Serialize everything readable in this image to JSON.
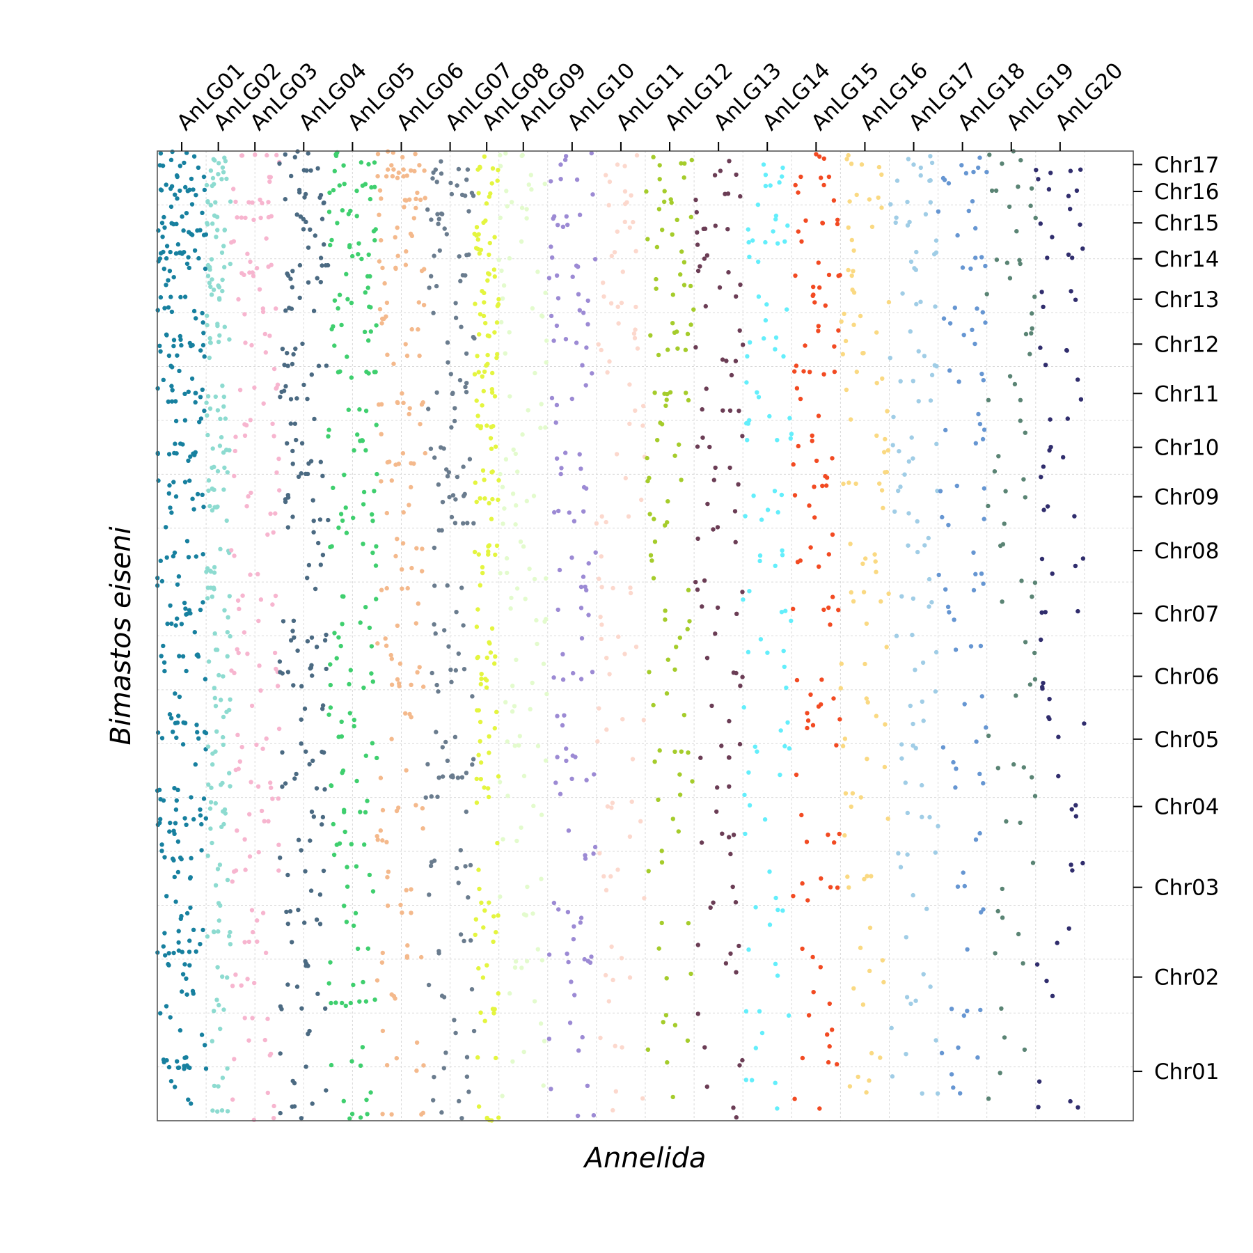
{
  "chart_data": {
    "type": "scatter",
    "xlabel": "Annelida",
    "ylabel": "Bimastos eiseni",
    "x_axis_position": "top",
    "y_axis_position": "right",
    "grid": true,
    "x_categories": [
      "AnLG01",
      "AnLG02",
      "AnLG03",
      "AnLG04",
      "AnLG05",
      "AnLG06",
      "AnLG07",
      "AnLG08",
      "AnLG09",
      "AnLG10",
      "AnLG11",
      "AnLG12",
      "AnLG13",
      "AnLG14",
      "AnLG15",
      "AnLG16",
      "AnLG17",
      "AnLG18",
      "AnLG19",
      "AnLG20"
    ],
    "x_category_colors": [
      "#17809f",
      "#8ddbd0",
      "#f7b5cf",
      "#4b6a82",
      "#3fcf6e",
      "#f4b98c",
      "#6a7c8e",
      "#e4f53f",
      "#e3fbcd",
      "#9c8ad4",
      "#fcd8cd",
      "#a5cc2b",
      "#6b3d55",
      "#63eefb",
      "#f24a22",
      "#fad982",
      "#a0cde6",
      "#6696d2",
      "#5a8474",
      "#302d6d"
    ],
    "y_categories": [
      "Chr01",
      "Chr02",
      "Chr03",
      "Chr04",
      "Chr05",
      "Chr06",
      "Chr07",
      "Chr08",
      "Chr09",
      "Chr10",
      "Chr11",
      "Chr12",
      "Chr13",
      "Chr14",
      "Chr15",
      "Chr16",
      "Chr17"
    ],
    "x_bounds": [
      0,
      2,
      3,
      5,
      7,
      9,
      11,
      13,
      14,
      16,
      18,
      20,
      22,
      24,
      26,
      28,
      30,
      32,
      34,
      36,
      38,
      40
    ],
    "y_bounds": [
      0,
      11,
      21,
      31,
      39,
      46,
      53,
      60,
      67,
      72,
      78,
      84,
      89,
      94,
      98,
      102,
      105,
      108
    ],
    "point_density": [
      [
        22,
        26,
        22,
        26,
        20,
        13,
        17,
        12,
        14,
        15,
        20,
        20,
        14,
        21,
        20,
        17,
        13
      ],
      [
        10,
        12,
        11,
        15,
        10,
        11,
        12,
        10,
        10,
        12,
        11,
        11,
        12,
        10,
        10,
        10,
        9
      ],
      [
        10,
        12,
        12,
        12,
        9,
        12,
        8,
        6,
        7,
        9,
        8,
        5,
        6,
        12,
        8,
        8,
        8
      ],
      [
        12,
        13,
        14,
        12,
        10,
        14,
        10,
        10,
        10,
        11,
        10,
        10,
        10,
        10,
        8,
        9,
        10
      ],
      [
        11,
        14,
        14,
        12,
        10,
        11,
        9,
        10,
        9,
        10,
        10,
        9,
        9,
        11,
        10,
        10,
        9
      ],
      [
        10,
        10,
        8,
        12,
        5,
        12,
        9,
        8,
        6,
        10,
        10,
        8,
        8,
        9,
        9,
        9,
        20
      ],
      [
        12,
        10,
        10,
        12,
        8,
        10,
        8,
        7,
        10,
        10,
        10,
        6,
        6,
        8,
        10,
        10,
        6
      ],
      [
        8,
        12,
        10,
        7,
        10,
        12,
        6,
        10,
        10,
        12,
        12,
        12,
        10,
        10,
        8,
        6,
        6
      ],
      [
        6,
        8,
        6,
        8,
        8,
        7,
        8,
        10,
        7,
        7,
        4,
        5,
        6,
        5,
        5,
        5,
        6
      ],
      [
        8,
        10,
        10,
        6,
        8,
        6,
        7,
        6,
        6,
        7,
        5,
        7,
        8,
        6,
        7,
        4,
        4
      ],
      [
        6,
        6,
        6,
        6,
        6,
        4,
        8,
        4,
        4,
        4,
        4,
        8,
        6,
        4,
        4,
        6,
        4
      ],
      [
        5,
        5,
        5,
        6,
        6,
        6,
        6,
        6,
        6,
        6,
        8,
        10,
        6,
        4,
        6,
        6,
        6
      ],
      [
        6,
        6,
        6,
        6,
        6,
        6,
        6,
        6,
        4,
        6,
        6,
        6,
        4,
        6,
        6,
        4,
        4
      ],
      [
        6,
        6,
        6,
        6,
        6,
        6,
        6,
        6,
        6,
        6,
        6,
        6,
        4,
        6,
        6,
        4,
        4
      ],
      [
        8,
        6,
        6,
        6,
        6,
        6,
        6,
        6,
        8,
        6,
        8,
        6,
        6,
        6,
        6,
        4,
        6
      ],
      [
        6,
        6,
        6,
        6,
        6,
        6,
        6,
        6,
        6,
        6,
        6,
        6,
        6,
        4,
        4,
        4,
        6
      ],
      [
        6,
        6,
        6,
        6,
        6,
        6,
        6,
        6,
        6,
        6,
        6,
        6,
        4,
        6,
        6,
        6,
        6
      ],
      [
        6,
        5,
        5,
        5,
        5,
        5,
        6,
        5,
        5,
        5,
        5,
        5,
        4,
        5,
        4,
        4,
        6
      ],
      [
        4,
        4,
        4,
        4,
        4,
        4,
        4,
        4,
        4,
        4,
        4,
        4,
        4,
        4,
        4,
        4,
        4
      ],
      [
        4,
        4,
        4,
        4,
        4,
        4,
        4,
        4,
        4,
        4,
        4,
        4,
        4,
        4,
        4,
        4,
        4
      ]
    ]
  }
}
